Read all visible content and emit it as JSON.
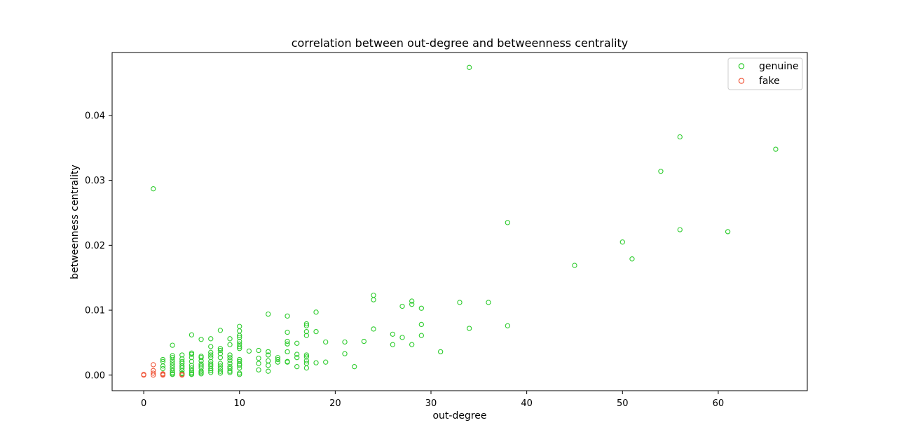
{
  "colors": {
    "genuine": "#2ecc2e",
    "fake": "#f0583c",
    "axes": "#000000",
    "legend_border": "#cccccc",
    "background": "#ffffff"
  },
  "chart_data": {
    "type": "scatter",
    "title": "correlation between out-degree and betweenness centrality",
    "xlabel": "out-degree",
    "ylabel": "betweenness centrality",
    "xlim": [
      -3.3,
      69.3
    ],
    "ylim": [
      -0.0024,
      0.0497
    ],
    "xticks": [
      0,
      10,
      20,
      30,
      40,
      50,
      60
    ],
    "xtick_labels": [
      "0",
      "10",
      "20",
      "30",
      "40",
      "50",
      "60"
    ],
    "yticks": [
      0.0,
      0.01,
      0.02,
      0.03,
      0.04
    ],
    "ytick_labels": [
      "0.00",
      "0.01",
      "0.02",
      "0.03",
      "0.04"
    ],
    "grid": false,
    "legend_position": "top-right",
    "marker": "open-circle",
    "series": [
      {
        "name": "genuine",
        "color": "#2ecc2e",
        "points": [
          [
            1,
            0.0287
          ],
          [
            34,
            0.0474
          ],
          [
            56,
            0.0367
          ],
          [
            66,
            0.0348
          ],
          [
            54,
            0.0314
          ],
          [
            38,
            0.0235
          ],
          [
            56,
            0.0224
          ],
          [
            61,
            0.0221
          ],
          [
            50,
            0.0205
          ],
          [
            51,
            0.0179
          ],
          [
            45,
            0.0169
          ],
          [
            24,
            0.0123
          ],
          [
            24,
            0.0116
          ],
          [
            28,
            0.0114
          ],
          [
            28,
            0.0109
          ],
          [
            33,
            0.0112
          ],
          [
            36,
            0.0112
          ],
          [
            27,
            0.0106
          ],
          [
            29,
            0.0103
          ],
          [
            18,
            0.0097
          ],
          [
            13,
            0.0094
          ],
          [
            15,
            0.0091
          ],
          [
            17,
            0.0079
          ],
          [
            17,
            0.0076
          ],
          [
            29,
            0.0078
          ],
          [
            38,
            0.0076
          ],
          [
            10,
            0.0075
          ],
          [
            34,
            0.0072
          ],
          [
            24,
            0.0071
          ],
          [
            8,
            0.0069
          ],
          [
            10,
            0.0068
          ],
          [
            15,
            0.0066
          ],
          [
            17,
            0.0067
          ],
          [
            18,
            0.0067
          ],
          [
            26,
            0.0063
          ],
          [
            5,
            0.0062
          ],
          [
            10,
            0.0061
          ],
          [
            17,
            0.0061
          ],
          [
            29,
            0.0061
          ],
          [
            10,
            0.0058
          ],
          [
            27,
            0.0058
          ],
          [
            6,
            0.0055
          ],
          [
            7,
            0.0056
          ],
          [
            9,
            0.0056
          ],
          [
            10,
            0.0052
          ],
          [
            15,
            0.0052
          ],
          [
            19,
            0.0051
          ],
          [
            21,
            0.0051
          ],
          [
            23,
            0.0052
          ],
          [
            3,
            0.0046
          ],
          [
            7,
            0.0044
          ],
          [
            9,
            0.0047
          ],
          [
            10,
            0.0048
          ],
          [
            15,
            0.0048
          ],
          [
            16,
            0.0049
          ],
          [
            26,
            0.0047
          ],
          [
            28,
            0.0047
          ],
          [
            8,
            0.0041
          ],
          [
            10,
            0.0044
          ],
          [
            8,
            0.0038
          ],
          [
            11,
            0.0037
          ],
          [
            12,
            0.0038
          ],
          [
            13,
            0.0036
          ],
          [
            15,
            0.0036
          ],
          [
            21,
            0.0033
          ],
          [
            31,
            0.0036
          ],
          [
            5,
            0.0034
          ],
          [
            7,
            0.0035
          ],
          [
            10,
            0.0041
          ],
          [
            3,
            0.003
          ],
          [
            4,
            0.0031
          ],
          [
            5,
            0.0032
          ],
          [
            6,
            0.0029
          ],
          [
            7,
            0.0031
          ],
          [
            8,
            0.0033
          ],
          [
            9,
            0.0031
          ],
          [
            13,
            0.0031
          ],
          [
            16,
            0.0032
          ],
          [
            17,
            0.0031
          ],
          [
            2,
            0.0024
          ],
          [
            3,
            0.0027
          ],
          [
            4,
            0.0025
          ],
          [
            5,
            0.0027
          ],
          [
            6,
            0.0027
          ],
          [
            7,
            0.0027
          ],
          [
            8,
            0.0027
          ],
          [
            9,
            0.0027
          ],
          [
            10,
            0.0024
          ],
          [
            12,
            0.0026
          ],
          [
            14,
            0.0027
          ],
          [
            16,
            0.0027
          ],
          [
            17,
            0.0028
          ],
          [
            2,
            0.0021
          ],
          [
            3,
            0.0023
          ],
          [
            4,
            0.0021
          ],
          [
            5,
            0.0021
          ],
          [
            6,
            0.0022
          ],
          [
            7,
            0.0021
          ],
          [
            9,
            0.0023
          ],
          [
            10,
            0.0021
          ],
          [
            13,
            0.0022
          ],
          [
            14,
            0.0024
          ],
          [
            15,
            0.0021
          ],
          [
            17,
            0.0022
          ],
          [
            19,
            0.002
          ],
          [
            3,
            0.0019
          ],
          [
            4,
            0.0018
          ],
          [
            6,
            0.0017
          ],
          [
            7,
            0.0017
          ],
          [
            8,
            0.0018
          ],
          [
            9,
            0.0018
          ],
          [
            10,
            0.0017
          ],
          [
            12,
            0.0018
          ],
          [
            14,
            0.002
          ],
          [
            15,
            0.002
          ],
          [
            17,
            0.0018
          ],
          [
            18,
            0.0019
          ],
          [
            2,
            0.0014
          ],
          [
            3,
            0.0015
          ],
          [
            4,
            0.0014
          ],
          [
            5,
            0.0015
          ],
          [
            6,
            0.0014
          ],
          [
            7,
            0.0014
          ],
          [
            8,
            0.0014
          ],
          [
            9,
            0.0013
          ],
          [
            10,
            0.0015
          ],
          [
            13,
            0.0015
          ],
          [
            16,
            0.0013
          ],
          [
            17,
            0.0011
          ],
          [
            22,
            0.0013
          ],
          [
            2,
            0.001
          ],
          [
            3,
            0.0011
          ],
          [
            4,
            0.0011
          ],
          [
            5,
            0.0011
          ],
          [
            6,
            0.0011
          ],
          [
            7,
            0.001
          ],
          [
            8,
            0.001
          ],
          [
            9,
            0.001
          ],
          [
            10,
            0.0011
          ],
          [
            12,
            0.0008
          ],
          [
            3,
            0.0007
          ],
          [
            4,
            0.0007
          ],
          [
            5,
            0.0007
          ],
          [
            6,
            0.0006
          ],
          [
            7,
            0.0007
          ],
          [
            8,
            0.0006
          ],
          [
            9,
            0.0006
          ],
          [
            13,
            0.0006
          ],
          [
            3,
            0.0004
          ],
          [
            4,
            0.0003
          ],
          [
            5,
            0.0004
          ],
          [
            6,
            0.0004
          ],
          [
            7,
            0.0004
          ],
          [
            8,
            0.0003
          ],
          [
            9,
            0.0004
          ],
          [
            10,
            0.0003
          ],
          [
            2,
            0.0002
          ],
          [
            3,
            0.0002
          ],
          [
            4,
            0.0002
          ],
          [
            5,
            0.0002
          ],
          [
            6,
            0.0002
          ],
          [
            3,
            0.0001
          ],
          [
            5,
            0.0001
          ],
          [
            10,
            0.0001
          ]
        ]
      },
      {
        "name": "fake",
        "color": "#f0583c",
        "points": [
          [
            0,
            0.0
          ],
          [
            0,
            0.0001
          ],
          [
            1,
            0.0
          ],
          [
            1,
            0.0003
          ],
          [
            1,
            0.0007
          ],
          [
            1,
            0.0016
          ],
          [
            2,
            0.0
          ],
          [
            2,
            0.0001
          ],
          [
            2,
            0.0002
          ],
          [
            4,
            0.0
          ],
          [
            4,
            0.0001
          ]
        ]
      }
    ]
  }
}
